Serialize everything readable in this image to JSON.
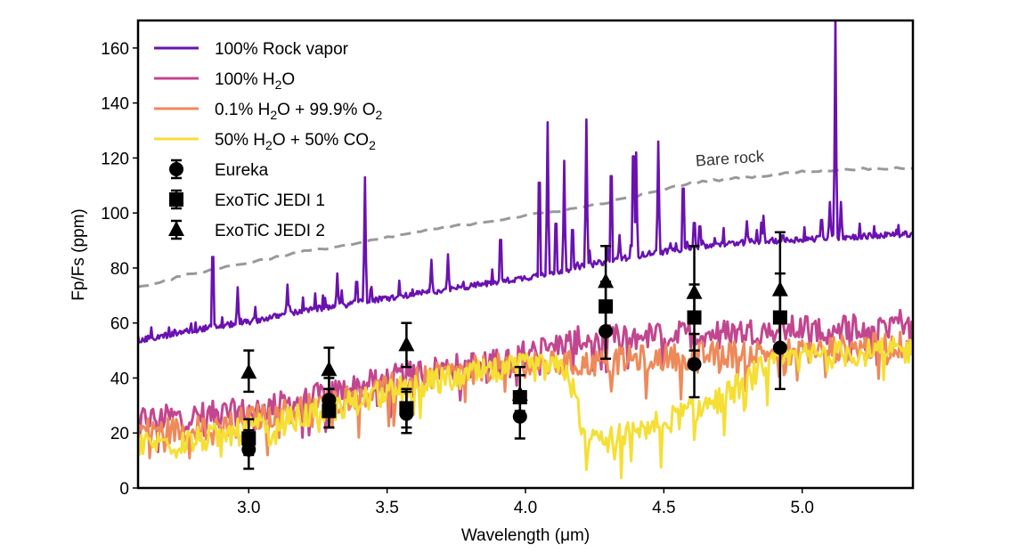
{
  "chart_data": {
    "type": "line",
    "title": "",
    "xlabel": "Wavelength (μm)",
    "ylabel": "Fp/Fs (ppm)",
    "xlim": [
      2.6,
      5.4
    ],
    "ylim": [
      0,
      170
    ],
    "xticks": [
      3.0,
      3.5,
      4.0,
      4.5,
      5.0
    ],
    "xtick_labels": [
      "3.0",
      "3.5",
      "4.0",
      "4.5",
      "5.0"
    ],
    "yticks": [
      0,
      20,
      40,
      60,
      80,
      100,
      120,
      140,
      160
    ],
    "ytick_labels": [
      "0",
      "20",
      "40",
      "60",
      "80",
      "100",
      "120",
      "140",
      "160"
    ],
    "grid": false,
    "legend_position": "top-left",
    "legend": [
      {
        "label": "100% Rock vapor",
        "kind": "line",
        "color": "#6a12b0"
      },
      {
        "label": "100% H₂O",
        "kind": "line",
        "color": "#c2468f",
        "html_parts": [
          "100% H",
          "2",
          "O"
        ]
      },
      {
        "label": "0.1% H₂O + 99.9% O₂",
        "kind": "line",
        "color": "#ee8a5a",
        "html_parts": [
          "0.1% H",
          "2",
          "O + 99.9% O",
          "2",
          ""
        ]
      },
      {
        "label": "50% H₂O + 50% CO₂",
        "kind": "line",
        "color": "#f5df35",
        "html_parts": [
          "50% H",
          "2",
          "O + 50% CO",
          "2",
          ""
        ]
      },
      {
        "label": "Eureka",
        "kind": "marker",
        "marker": "circle"
      },
      {
        "label": "ExoTiC JEDI 1",
        "kind": "marker",
        "marker": "square"
      },
      {
        "label": "ExoTiC JEDI 2",
        "kind": "marker",
        "marker": "triangle"
      }
    ],
    "annotations": [
      {
        "text": "Bare rock",
        "x": 4.88,
        "y": 117
      }
    ],
    "series": [
      {
        "name": "Bare rock",
        "style": "dashed",
        "color": "#999999",
        "x": [
          2.6,
          2.8,
          3.0,
          3.2,
          3.4,
          3.6,
          3.8,
          4.0,
          4.2,
          4.4,
          4.6,
          4.8,
          5.0,
          5.2,
          5.4
        ],
        "y": [
          73,
          78,
          82,
          86,
          89,
          93,
          96,
          99,
          102,
          106,
          111,
          113,
          115,
          116,
          116.5
        ]
      },
      {
        "name": "100% Rock vapor",
        "style": "solid",
        "color": "#6a12b0",
        "baseline_x": [
          2.6,
          2.8,
          3.0,
          3.2,
          3.4,
          3.6,
          3.8,
          4.0,
          4.2,
          4.4,
          4.6,
          4.8,
          5.0,
          5.2,
          5.4
        ],
        "baseline_y": [
          53,
          57,
          60,
          64,
          67,
          70,
          73,
          76,
          80,
          84,
          87,
          89,
          90,
          91,
          92
        ],
        "peaks": [
          {
            "x": 2.87,
            "y": 97
          },
          {
            "x": 2.96,
            "y": 73
          },
          {
            "x": 3.14,
            "y": 74
          },
          {
            "x": 3.32,
            "y": 78
          },
          {
            "x": 3.39,
            "y": 79
          },
          {
            "x": 3.42,
            "y": 113
          },
          {
            "x": 3.66,
            "y": 83
          },
          {
            "x": 3.72,
            "y": 85
          },
          {
            "x": 3.91,
            "y": 98
          },
          {
            "x": 4.05,
            "y": 128
          },
          {
            "x": 4.08,
            "y": 133
          },
          {
            "x": 4.11,
            "y": 105
          },
          {
            "x": 4.14,
            "y": 119
          },
          {
            "x": 4.17,
            "y": 101
          },
          {
            "x": 4.22,
            "y": 134
          },
          {
            "x": 4.31,
            "y": 129
          },
          {
            "x": 4.34,
            "y": 92
          },
          {
            "x": 4.39,
            "y": 139
          },
          {
            "x": 4.4,
            "y": 122
          },
          {
            "x": 4.48,
            "y": 126
          },
          {
            "x": 4.57,
            "y": 120
          },
          {
            "x": 4.61,
            "y": 101
          },
          {
            "x": 4.63,
            "y": 99
          },
          {
            "x": 4.8,
            "y": 97
          },
          {
            "x": 4.86,
            "y": 99
          },
          {
            "x": 4.93,
            "y": 93
          },
          {
            "x": 5.07,
            "y": 101
          },
          {
            "x": 5.1,
            "y": 104
          },
          {
            "x": 5.12,
            "y": 170
          },
          {
            "x": 5.14,
            "y": 104
          }
        ]
      },
      {
        "name": "100% H₂O",
        "style": "solid",
        "color": "#c2468f",
        "baseline_x": [
          2.6,
          2.8,
          3.0,
          3.2,
          3.4,
          3.6,
          3.8,
          4.0,
          4.2,
          4.4,
          4.6,
          4.8,
          5.0,
          5.2,
          5.4
        ],
        "baseline_y": [
          25,
          26,
          28,
          32,
          37,
          42,
          45,
          49,
          54,
          55,
          56,
          57,
          58,
          59,
          61
        ],
        "noise": 5
      },
      {
        "name": "0.1% H₂O + 99.9% O₂",
        "style": "solid",
        "color": "#ee8a5a",
        "baseline_x": [
          2.6,
          2.8,
          3.0,
          3.2,
          3.4,
          3.6,
          3.8,
          4.0,
          4.2,
          4.4,
          4.6,
          4.8,
          5.0,
          5.2,
          5.4
        ],
        "baseline_y": [
          21,
          21,
          25,
          29,
          34,
          39,
          43,
          45,
          45,
          47,
          48,
          49,
          50,
          51,
          52
        ],
        "noise": 5
      },
      {
        "name": "50% H₂O + 50% CO₂",
        "style": "solid",
        "color": "#f5df35",
        "baseline_x": [
          2.6,
          2.8,
          3.0,
          3.2,
          3.4,
          3.6,
          3.8,
          4.0,
          4.15,
          4.22,
          4.3,
          4.5,
          4.7,
          4.85,
          5.0,
          5.2,
          5.4
        ],
        "baseline_y": [
          16,
          17,
          21,
          26,
          32,
          37,
          41,
          44,
          43,
          18,
          17,
          24,
          32,
          43,
          48,
          49,
          50
        ],
        "noise": 5
      }
    ],
    "points": [
      {
        "name": "Eureka",
        "marker": "circle",
        "x": [
          3.0,
          3.29,
          3.57,
          3.98,
          4.29,
          4.61,
          4.92
        ],
        "y": [
          14,
          32,
          27,
          26,
          57,
          45,
          51
        ],
        "yerr_low": [
          7,
          10,
          7,
          8,
          10,
          12,
          15
        ],
        "yerr_high": [
          7,
          8,
          8,
          9,
          10,
          11,
          11
        ]
      },
      {
        "name": "ExoTiC JEDI 1",
        "marker": "square",
        "x": [
          3.0,
          3.29,
          3.57,
          3.98,
          4.29,
          4.61,
          4.92
        ],
        "y": [
          18,
          28,
          29,
          33,
          66,
          62,
          62
        ],
        "yerr_low": [
          6,
          6,
          7,
          8,
          9,
          12,
          11
        ],
        "yerr_high": [
          7,
          8,
          7,
          8,
          9,
          12,
          16
        ]
      },
      {
        "name": "ExoTiC JEDI 2",
        "marker": "triangle",
        "x": [
          3.0,
          3.29,
          3.57,
          3.98,
          4.29,
          4.61,
          4.92
        ],
        "y": [
          42,
          43,
          52,
          34,
          75,
          71,
          72
        ],
        "yerr_low": [
          7,
          7,
          8,
          6,
          10,
          10,
          11
        ],
        "yerr_high": [
          8,
          8,
          8,
          10,
          13,
          17,
          21
        ]
      }
    ]
  }
}
